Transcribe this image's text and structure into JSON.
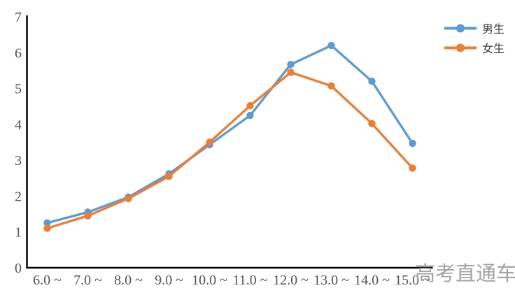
{
  "chart_data": {
    "type": "line",
    "title": "",
    "xlabel": "",
    "ylabel": "",
    "categories": [
      "6.0 ~",
      "7.0 ~",
      "8.0 ~",
      "9.0 ~",
      "10.0 ~",
      "11.0 ~",
      "12.0 ~",
      "13.0 ~",
      "14.0 ~",
      "15.0 ~"
    ],
    "series": [
      {
        "name": "男生",
        "color": "#5B9BD5",
        "values": [
          1.25,
          1.55,
          1.97,
          2.62,
          3.43,
          4.25,
          5.67,
          6.2,
          5.2,
          3.47
        ]
      },
      {
        "name": "女生",
        "color": "#ED7D31",
        "values": [
          1.1,
          1.45,
          1.93,
          2.55,
          3.5,
          4.52,
          5.45,
          5.07,
          4.02,
          2.78
        ]
      }
    ],
    "ylim": [
      0,
      7
    ],
    "yticks": [
      0,
      1,
      2,
      3,
      4,
      5,
      6,
      7
    ],
    "grid": false,
    "legend_position": "top-right",
    "marker": "circle"
  },
  "watermark": {
    "text": "高考直通车",
    "color": "#a3a3a3"
  },
  "colors": {
    "axis": "#000000",
    "tick_label": "#50505f",
    "legend_text": "#3a3a3a",
    "background": "#ffffff"
  }
}
